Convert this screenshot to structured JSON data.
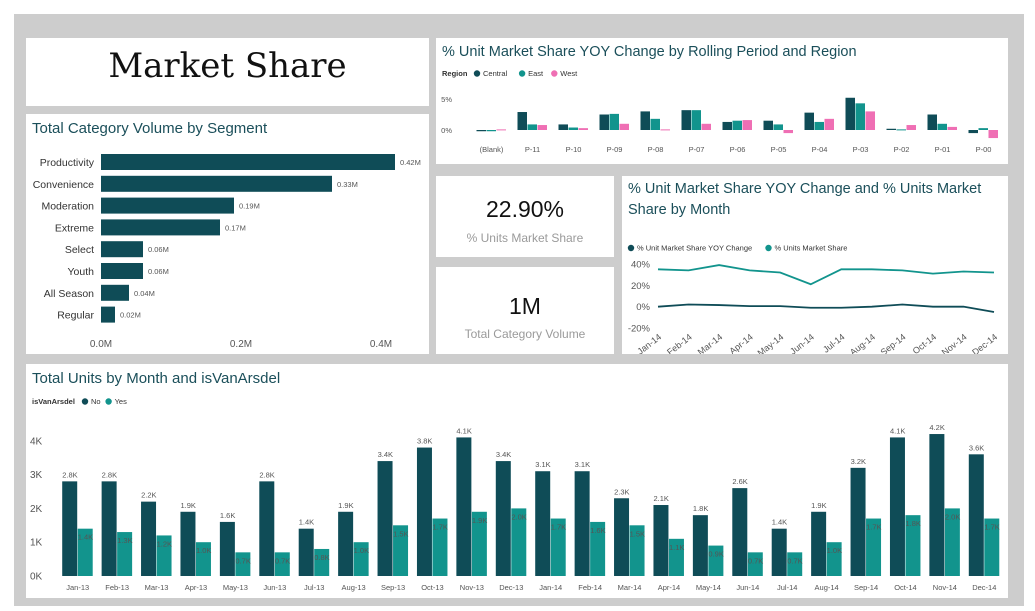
{
  "page": {
    "title": "Market Share"
  },
  "colors": {
    "central": "#0f4c57",
    "east": "#12948d",
    "west": "#ef6fb4",
    "no": "#0f4c57",
    "yes": "#12948d",
    "segment_bar": "#0f4c57",
    "title_text": "#1b4f5a"
  },
  "cards": [
    {
      "value": "22.90%",
      "label": "% Units Market Share"
    },
    {
      "value": "1M",
      "label": "Total Category Volume"
    }
  ],
  "chart_data": [
    {
      "type": "bar",
      "orientation": "horizontal",
      "title": "Total Category Volume by Segment",
      "categories": [
        "Productivity",
        "Convenience",
        "Moderation",
        "Extreme",
        "Select",
        "Youth",
        "All Season",
        "Regular"
      ],
      "values": [
        0.42,
        0.33,
        0.19,
        0.17,
        0.06,
        0.06,
        0.04,
        0.02
      ],
      "value_labels": [
        "0.42M",
        "0.33M",
        "0.19M",
        "0.17M",
        "0.06M",
        "0.06M",
        "0.04M",
        "0.02M"
      ],
      "x_ticks": [
        "0.0M",
        "0.2M",
        "0.4M"
      ],
      "x_tick_values": [
        0,
        0.2,
        0.4
      ],
      "xlim": [
        0,
        0.45
      ],
      "grid": false
    },
    {
      "type": "bar",
      "title": "% Unit Market Share YOY Change by Rolling Period and Region",
      "legend_title": "Region",
      "legend_position": "top-left",
      "categories": [
        "(Blank)",
        "P-11",
        "P-10",
        "P-09",
        "P-08",
        "P-07",
        "P-06",
        "P-05",
        "P-04",
        "P-03",
        "P-02",
        "P-01",
        "P-00"
      ],
      "series": [
        {
          "name": "Central",
          "values": [
            -0.2,
            2.9,
            0.9,
            2.5,
            3.0,
            3.2,
            1.3,
            1.5,
            2.8,
            5.2,
            0.2,
            2.5,
            -0.5
          ]
        },
        {
          "name": "East",
          "values": [
            -0.2,
            0.9,
            0.4,
            2.6,
            1.8,
            3.2,
            1.5,
            0.9,
            1.3,
            4.3,
            0.1,
            1.0,
            0.3
          ]
        },
        {
          "name": "West",
          "values": [
            0.1,
            0.8,
            0.3,
            1.0,
            0.1,
            1.0,
            1.6,
            -0.5,
            1.8,
            3.0,
            0.8,
            0.5,
            -1.3
          ]
        }
      ],
      "y_ticks": [
        "5%",
        "0%"
      ],
      "y_tick_values": [
        5,
        0
      ],
      "ylim": [
        -2,
        6
      ],
      "grid": false
    },
    {
      "type": "line",
      "title": "% Unit Market Share YOY Change and % Units Market Share by Month",
      "legend_position": "top-left",
      "categories": [
        "Jan-14",
        "Feb-14",
        "Mar-14",
        "Apr-14",
        "May-14",
        "Jun-14",
        "Jul-14",
        "Aug-14",
        "Sep-14",
        "Oct-14",
        "Nov-14",
        "Dec-14"
      ],
      "series": [
        {
          "name": "% Unit Market Share YOY Change",
          "values": [
            0,
            2,
            1.5,
            0.5,
            0.5,
            -1,
            -1,
            0,
            2,
            0,
            0,
            -5
          ]
        },
        {
          "name": "% Units Market Share",
          "values": [
            35,
            34,
            39,
            34,
            32,
            21,
            35,
            35,
            34,
            31,
            33,
            32
          ]
        }
      ],
      "y_ticks": [
        "40%",
        "20%",
        "0%",
        "-20%"
      ],
      "y_tick_values": [
        40,
        20,
        0,
        -20
      ],
      "ylim": [
        -20,
        40
      ],
      "grid": false
    },
    {
      "type": "bar",
      "title": "Total Units by Month and isVanArsdel",
      "legend_title": "isVanArsdel",
      "legend_position": "top-left",
      "categories": [
        "Jan-13",
        "Feb-13",
        "Mar-13",
        "Apr-13",
        "May-13",
        "Jun-13",
        "Jul-13",
        "Aug-13",
        "Sep-13",
        "Oct-13",
        "Nov-13",
        "Dec-13",
        "Jan-14",
        "Feb-14",
        "Mar-14",
        "Apr-14",
        "May-14",
        "Jun-14",
        "Jul-14",
        "Aug-14",
        "Sep-14",
        "Oct-14",
        "Nov-14",
        "Dec-14"
      ],
      "series": [
        {
          "name": "No",
          "values": [
            2.8,
            2.8,
            2.2,
            1.9,
            1.6,
            2.8,
            1.4,
            1.9,
            3.4,
            3.8,
            4.1,
            3.4,
            3.1,
            3.1,
            2.3,
            2.1,
            1.8,
            2.6,
            1.4,
            1.9,
            3.2,
            4.1,
            4.2,
            3.6
          ],
          "labels": [
            "2.8K",
            "2.8K",
            "2.2K",
            "1.9K",
            "1.6K",
            "2.8K",
            "1.4K",
            "1.9K",
            "3.4K",
            "3.8K",
            "4.1K",
            "3.4K",
            "3.1K",
            "3.1K",
            "2.3K",
            "2.1K",
            "1.8K",
            "2.6K",
            "1.4K",
            "1.9K",
            "3.2K",
            "4.1K",
            "4.2K",
            "3.6K"
          ]
        },
        {
          "name": "Yes",
          "values": [
            1.4,
            1.3,
            1.2,
            1.0,
            0.7,
            0.7,
            0.8,
            1.0,
            1.5,
            1.7,
            1.9,
            2.0,
            1.7,
            1.6,
            1.5,
            1.1,
            0.9,
            0.7,
            0.7,
            1.0,
            1.7,
            1.8,
            2.0,
            1.7
          ],
          "labels": [
            "1.4K",
            "1.3K",
            "1.2K",
            "1.0K",
            "0.7K",
            "0.7K",
            "0.8K",
            "1.0K",
            "1.5K",
            "1.7K",
            "1.9K",
            "2.0K",
            "1.7K",
            "1.6K",
            "1.5K",
            "1.1K",
            "0.9K",
            "0.7K",
            "0.7K",
            "1.0K",
            "1.7K",
            "1.8K",
            "2.0K",
            "1.7K"
          ]
        }
      ],
      "y_ticks": [
        "4K",
        "3K",
        "2K",
        "1K",
        "0K"
      ],
      "y_tick_values": [
        4,
        3,
        2,
        1,
        0
      ],
      "ylim": [
        0,
        4.4
      ],
      "grid": false
    }
  ]
}
